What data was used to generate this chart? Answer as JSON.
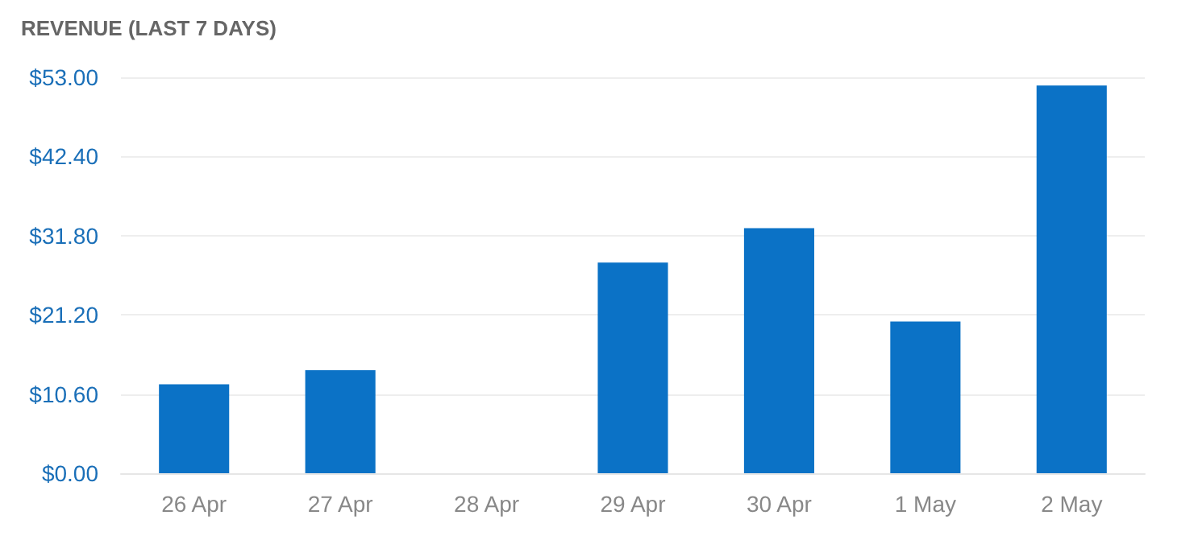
{
  "chart_data": {
    "type": "bar",
    "title": "REVENUE (LAST 7 DAYS)",
    "categories": [
      "26 Apr",
      "27 Apr",
      "28 Apr",
      "29 Apr",
      "30 Apr",
      "1 May",
      "2 May"
    ],
    "values": [
      11.9,
      13.8,
      0,
      28.2,
      32.8,
      20.3,
      51.9
    ],
    "color": "#0b72c6",
    "ylim": [
      0,
      53
    ],
    "yticks": [
      {
        "value": 0,
        "label": "$0.00"
      },
      {
        "value": 10.6,
        "label": "$10.60"
      },
      {
        "value": 21.2,
        "label": "$21.20"
      },
      {
        "value": 31.8,
        "label": "$31.80"
      },
      {
        "value": 42.4,
        "label": "$42.40"
      },
      {
        "value": 53,
        "label": "$53.00"
      }
    ],
    "grid": "y"
  }
}
